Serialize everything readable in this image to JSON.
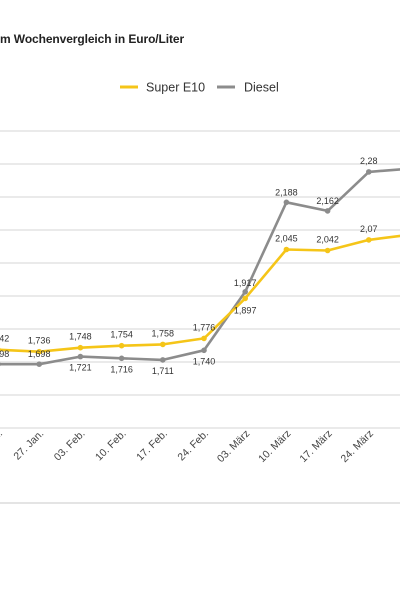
{
  "title": "m Wochenvergleich in Euro/Liter",
  "chart_data": {
    "type": "line",
    "title": "m Wochenvergleich in Euro/Liter",
    "categories": [
      "20. Jan.",
      "27. Jan.",
      "03. Feb.",
      "10. Feb.",
      "17. Feb.",
      "24. Feb.",
      "03. März",
      "10. März",
      "17. März",
      "24. März",
      ""
    ],
    "tick_labels_visible": [
      "0. Jan.",
      "27. Jan.",
      "03. Feb.",
      "10. Feb.",
      "17. Feb.",
      "24. Feb.",
      "03. März",
      "10. März",
      "17. März",
      "24. März",
      ""
    ],
    "series": [
      {
        "name": "Super E10",
        "color": "#F5C518",
        "values": [
          1.742,
          1.736,
          1.748,
          1.754,
          1.758,
          1.776,
          1.897,
          2.045,
          2.042,
          2.074,
          2.09
        ],
        "labels": [
          "1,742",
          "1,736",
          "1,748",
          "1,754",
          "1,758",
          "1,776",
          "1,897",
          "2,045",
          "2,042",
          "2,07",
          ""
        ]
      },
      {
        "name": "Diesel",
        "color": "#8C8C8C",
        "values": [
          1.698,
          1.698,
          1.721,
          1.716,
          1.711,
          1.74,
          1.917,
          2.188,
          2.162,
          2.28,
          2.29
        ],
        "labels": [
          "1,698",
          "1,698",
          "1,721",
          "1,716",
          "1,711",
          "1,740",
          "1,917",
          "2,188",
          "2,162",
          "2,28",
          ""
        ]
      }
    ],
    "grid": true,
    "legend": "top-center"
  }
}
